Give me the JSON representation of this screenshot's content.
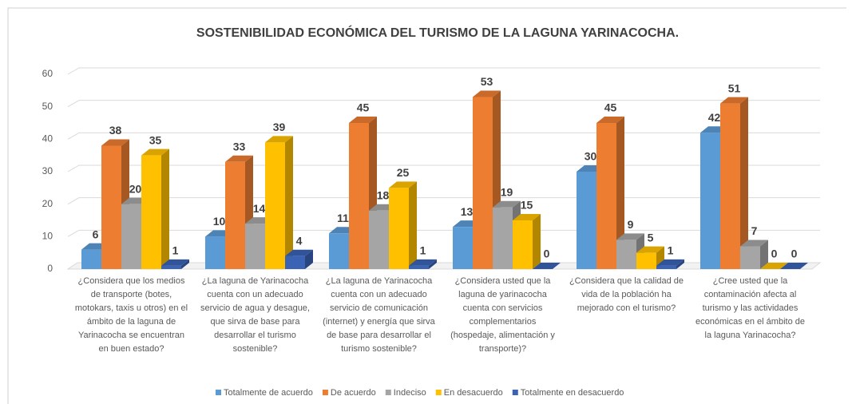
{
  "chart_data": {
    "type": "bar3d",
    "title": "SOSTENIBILIDAD ECONÓMICA DEL TURISMO DE LA LAGUNA YARINACOCHA.",
    "categories": [
      "¿Considera que los medios de transporte (botes, motokars, taxis u otros) en el ámbito de la laguna de Yarinacocha se encuentran en buen estado?",
      "¿La laguna de Yarinacocha cuenta con un adecuado servicio de agua y desague, que sirva de base para desarrollar el turismo sostenible?",
      "¿La laguna de Yarinacocha cuenta con un adecuado servicio de comunicación (internet) y energía  que sirva de base para desarrollar el turismo sostenible?",
      "¿Considera usted que la laguna de yarinacocha cuenta con servicios complementarios (hospedaje, alimentación y transporte)?",
      "¿Considera que la calidad de vida de la población ha mejorado con el turismo?",
      "¿Cree usted que la contaminación afecta al turismo y las actividades económicas en el ámbito de la laguna Yarinacocha?"
    ],
    "series": [
      {
        "name": "Totalmente de acuerdo",
        "color": "#5b9bd5",
        "values": [
          6,
          10,
          11,
          13,
          30,
          42
        ]
      },
      {
        "name": "De acuerdo",
        "color": "#ed7d31",
        "values": [
          38,
          33,
          45,
          53,
          45,
          51
        ]
      },
      {
        "name": "Indeciso",
        "color": "#a5a5a5",
        "values": [
          20,
          14,
          18,
          19,
          9,
          7
        ]
      },
      {
        "name": "En desacuerdo",
        "color": "#ffc000",
        "values": [
          35,
          39,
          25,
          15,
          5,
          0
        ]
      },
      {
        "name": "Totalmente en desacuerdo",
        "color": "#3a62b5",
        "values": [
          1,
          4,
          1,
          0,
          1,
          0
        ]
      }
    ],
    "ylim": [
      0,
      60
    ],
    "yticks": [
      0,
      10,
      20,
      30,
      40,
      50,
      60
    ],
    "grid": true,
    "legend": "bottom"
  }
}
